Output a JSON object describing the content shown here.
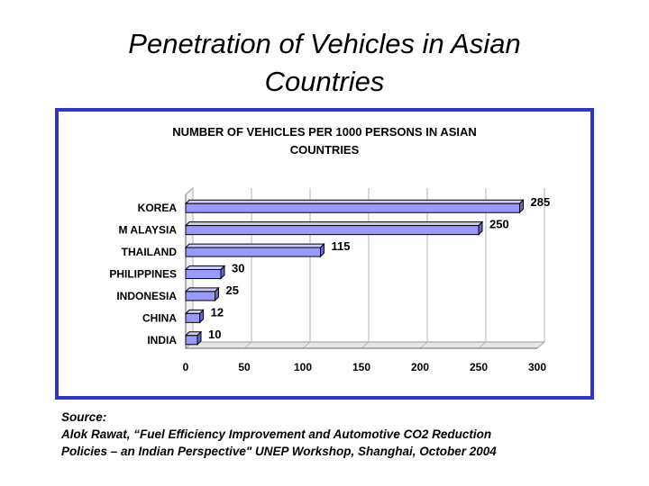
{
  "slide": {
    "title_line1": "Penetration of Vehicles in Asian",
    "title_line2": "Countries"
  },
  "source": {
    "line1": "Source:",
    "line2": "Alok Rawat, “Fuel Efficiency Improvement and Automotive CO2 Reduction",
    "line3": "Policies – an Indian Perspective\" UNEP Workshop, Shanghai, October 2004"
  },
  "colors": {
    "frame": "#3333cc",
    "bar_face": "#9999ff",
    "bar_top": "#ccccff",
    "bar_side": "#6666cc"
  },
  "chart_data": {
    "type": "bar",
    "orientation": "horizontal",
    "title_line1": "NUMBER OF VEHICLES PER 1000 PERSONS IN ASIAN",
    "title_line2": "COUNTRIES",
    "categories": [
      "KOREA",
      "M ALAYSIA",
      "THAILAND",
      "PHILIPPINES",
      "INDONESIA",
      "CHINA",
      "INDIA"
    ],
    "values": [
      285,
      250,
      115,
      30,
      25,
      12,
      10
    ],
    "data_labels": [
      "285",
      "250",
      "115",
      "30",
      "25",
      "12",
      "10"
    ],
    "xlim": [
      0,
      300
    ],
    "xticks": [
      0,
      50,
      100,
      150,
      200,
      250,
      300
    ],
    "grid": true,
    "legend": "none"
  }
}
